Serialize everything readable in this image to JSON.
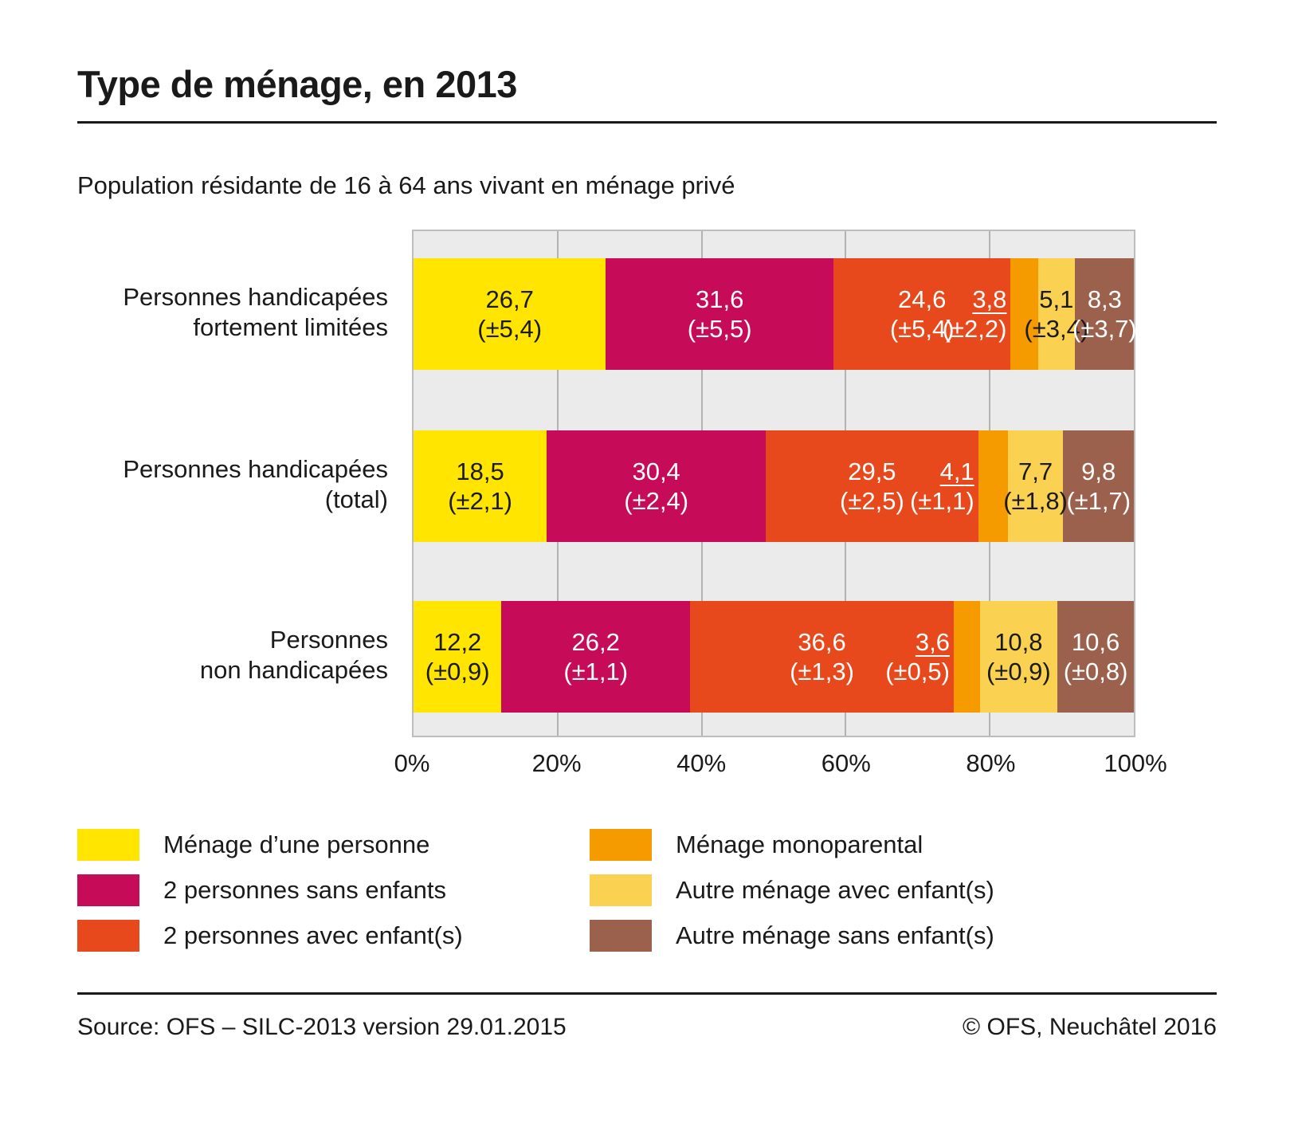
{
  "title": "Type de ménage, en 2013",
  "subtitle": "Population résidante de 16 à 64 ans vivant en ménage privé",
  "footer": {
    "source": "Source: OFS – SILC-2013 version 29.01.2015",
    "copyright": "© OFS, Neuchâtel 2016"
  },
  "colors": {
    "plot_background": "#ebebeb",
    "gridline": "#b3b3b3",
    "rule": "#1a1a1a",
    "text": "#1a1a1a"
  },
  "chart_data": {
    "type": "bar",
    "orientation": "horizontal",
    "stacked": true,
    "unit": "%",
    "xlim": [
      0,
      100
    ],
    "grid": true,
    "legend_position": "bottom",
    "x_ticks": [
      {
        "label": "0%",
        "pct": 0
      },
      {
        "label": "20%",
        "pct": 20
      },
      {
        "label": "40%",
        "pct": 40
      },
      {
        "label": "60%",
        "pct": 60
      },
      {
        "label": "80%",
        "pct": 80
      },
      {
        "label": "100%",
        "pct": 100
      }
    ],
    "gridlines_pct": [
      20,
      40,
      60,
      80
    ],
    "series": [
      {
        "key": "menage-une-personne",
        "name": "Ménage d’une personne",
        "color": "#ffe500",
        "text_color": "#1a1a1a"
      },
      {
        "key": "deux-personnes-sans-enfants",
        "name": "2 personnes sans enfants",
        "color": "#c60c59",
        "text_color": "#ffffff"
      },
      {
        "key": "deux-personnes-avec-enfants",
        "name": "2 personnes avec enfant(s)",
        "color": "#e8491c",
        "text_color": "#ffffff"
      },
      {
        "key": "menage-monoparental",
        "name": "Ménage monoparental",
        "color": "#f59b00",
        "text_color": "#ffffff",
        "label_outside": true,
        "label_underline": true
      },
      {
        "key": "autre-menage-avec-enfants",
        "name": "Autre ménage avec enfant(s)",
        "color": "#fad150",
        "text_color": "#1a1a1a"
      },
      {
        "key": "autre-menage-sans-enfants",
        "name": "Autre ménage sans enfant(s)",
        "color": "#9c614c",
        "text_color": "#ffffff"
      }
    ],
    "rows": [
      {
        "category_lines": [
          "Personnes handicapées",
          "fortement limitées"
        ],
        "values": [
          26.7,
          31.6,
          24.6,
          3.8,
          5.1,
          8.3
        ],
        "value_labels": [
          "26,7",
          "31,6",
          "24,6",
          "3,8",
          "5,1",
          "8,3"
        ],
        "moe_labels": [
          "(±5,4)",
          "(±5,5)",
          "(±5,4)",
          "(±2,2)",
          "(±3,4)",
          "(±3,7)"
        ]
      },
      {
        "category_lines": [
          "Personnes handicapées",
          "(total)"
        ],
        "values": [
          18.5,
          30.4,
          29.5,
          4.1,
          7.7,
          9.8
        ],
        "value_labels": [
          "18,5",
          "30,4",
          "29,5",
          "4,1",
          "7,7",
          "9,8"
        ],
        "moe_labels": [
          "(±2,1)",
          "(±2,4)",
          "(±2,5)",
          "(±1,1)",
          "(±1,8)",
          "(±1,7)"
        ]
      },
      {
        "category_lines": [
          "Personnes",
          "non handicapées"
        ],
        "values": [
          12.2,
          26.2,
          36.6,
          3.6,
          10.8,
          10.6
        ],
        "value_labels": [
          "12,2",
          "26,2",
          "36,6",
          "3,6",
          "10,8",
          "10,6"
        ],
        "moe_labels": [
          "(±0,9)",
          "(±1,1)",
          "(±1,3)",
          "(±0,5)",
          "(±0,9)",
          "(±0,8)"
        ]
      }
    ]
  }
}
